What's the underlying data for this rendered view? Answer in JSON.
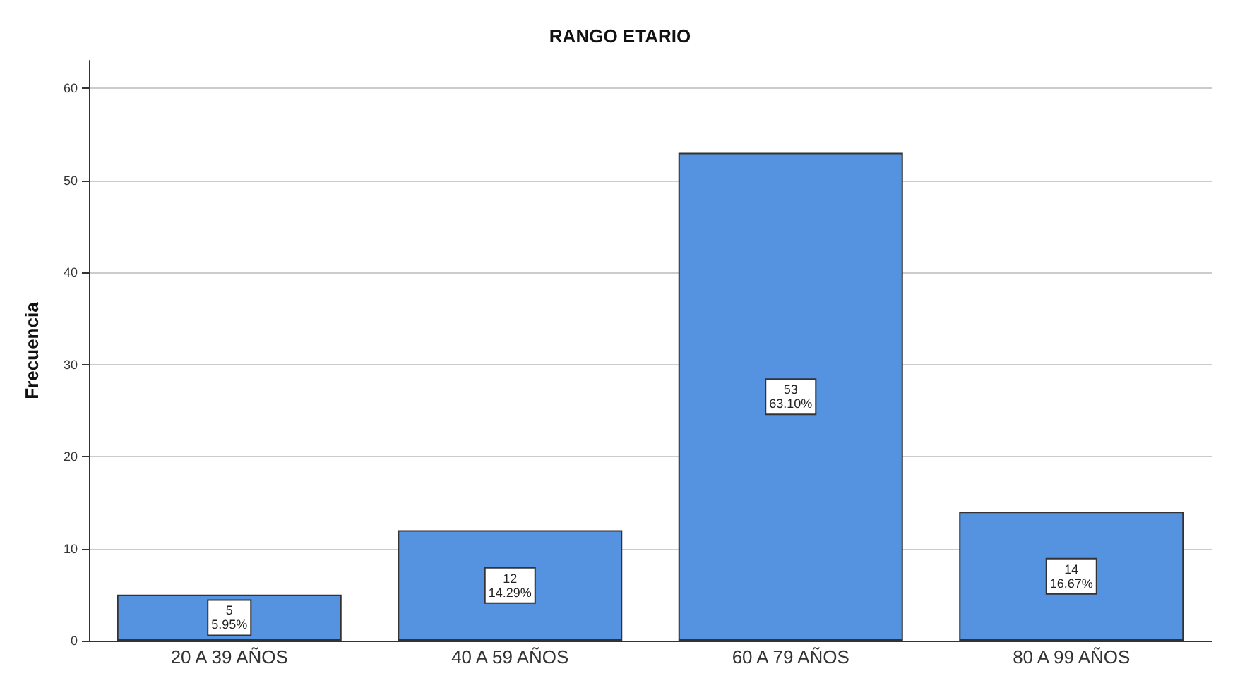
{
  "chart_data": {
    "type": "bar",
    "title": "RANGO ETARIO",
    "ylabel": "Frecuencia",
    "categories": [
      "20 A 39 AÑOS",
      "40 A 59 AÑOS",
      "60 A 79 AÑOS",
      "80 A 99 AÑOS"
    ],
    "values": [
      5,
      12,
      53,
      14
    ],
    "value_labels": [
      "5\n5.95%",
      "12\n14.29%",
      "53\n63.10%",
      "14\n16.67%"
    ],
    "color": "#5593e0",
    "ylim": [
      0,
      63
    ],
    "yticks": [
      0,
      10,
      20,
      30,
      40,
      50,
      60
    ],
    "grid": "y"
  }
}
